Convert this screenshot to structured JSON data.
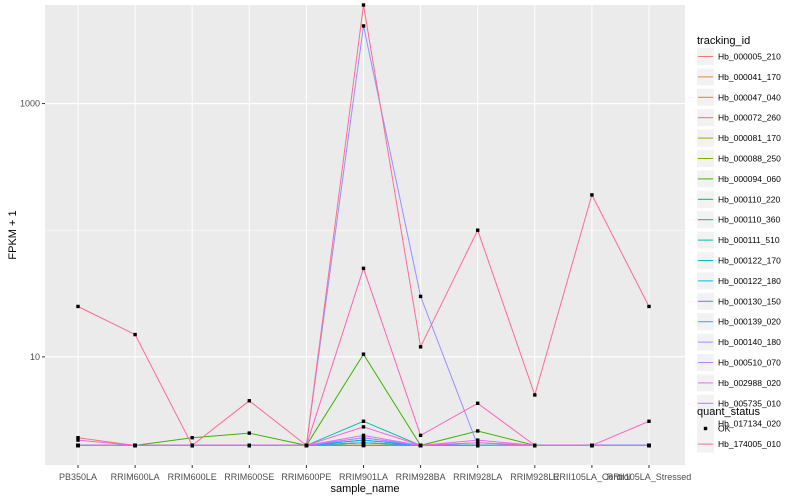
{
  "chart_data": {
    "type": "line",
    "title": "",
    "xlabel": "sample_name",
    "ylabel": "FPKM + 1",
    "y_scale": "log10",
    "ylim": [
      1.4,
      6000
    ],
    "y_ticks": [
      {
        "value": 10,
        "label": "10"
      },
      {
        "value": 1000,
        "label": "1000"
      }
    ],
    "grid": true,
    "panel_background": "#ebebeb",
    "categories": [
      "PB350LA",
      "RRIM600LA",
      "RRIM600LE",
      "RRIM600SE",
      "RRIM600PE",
      "RRIM901LA",
      "RRIM928BA",
      "RRIM928LA",
      "RRIM928LE",
      "RRII105LA_Control",
      "RRII105LA_Stressed"
    ],
    "legend": {
      "position": "right",
      "color_title": "tracking_id",
      "shape_title": "quant_status",
      "shape_entries": [
        "OK"
      ]
    },
    "series": [
      {
        "name": "Hb_000005_210",
        "color": "#F8766D",
        "values": [
          2.3,
          2,
          2,
          2,
          2,
          2,
          2,
          2,
          2,
          2,
          2
        ]
      },
      {
        "name": "Hb_000041_170",
        "color": "#F07F44",
        "values": [
          2,
          2,
          2,
          2,
          2,
          2,
          2,
          2,
          2,
          2,
          2
        ]
      },
      {
        "name": "Hb_000047_040",
        "color": "#E58700",
        "values": [
          2,
          2,
          2,
          2,
          2,
          2,
          2,
          2,
          2,
          2,
          2
        ]
      },
      {
        "name": "Hb_000072_260",
        "color": "#C99800",
        "values": [
          2,
          2,
          2,
          2,
          2,
          2,
          2,
          2,
          2,
          2,
          2
        ]
      },
      {
        "name": "Hb_000081_170",
        "color": "#A3A500",
        "values": [
          2,
          2,
          2,
          2,
          2,
          2,
          2,
          2,
          2,
          2,
          2
        ]
      },
      {
        "name": "Hb_000088_250",
        "color": "#7CAE00",
        "values": [
          2,
          2,
          2,
          2,
          2,
          2,
          2,
          2,
          2,
          2,
          2
        ]
      },
      {
        "name": "Hb_000094_060",
        "color": "#39B600",
        "values": [
          2,
          2,
          2.3,
          2.5,
          2,
          10.5,
          2,
          2.6,
          2,
          2,
          2
        ]
      },
      {
        "name": "Hb_000110_220",
        "color": "#00BB4E",
        "values": [
          2,
          2,
          2,
          2,
          2,
          2.2,
          2,
          2,
          2,
          2,
          2
        ]
      },
      {
        "name": "Hb_000110_360",
        "color": "#00BF7D",
        "values": [
          2,
          2,
          2,
          2,
          2,
          2.1,
          2,
          2,
          2,
          2,
          2
        ]
      },
      {
        "name": "Hb_000111_510",
        "color": "#00C1A3",
        "values": [
          2,
          2,
          2,
          2,
          2,
          3.1,
          2,
          2,
          2,
          2,
          2
        ]
      },
      {
        "name": "Hb_000122_170",
        "color": "#00BFC4",
        "values": [
          2,
          2,
          2,
          2,
          2,
          2.3,
          2,
          2,
          2,
          2,
          2
        ]
      },
      {
        "name": "Hb_000122_180",
        "color": "#00BAE0",
        "values": [
          2,
          2,
          2,
          2,
          2,
          2.1,
          2,
          2,
          2,
          2,
          2
        ]
      },
      {
        "name": "Hb_000130_150",
        "color": "#00B0F6",
        "values": [
          2,
          2,
          2,
          2,
          2,
          2.2,
          2,
          2,
          2,
          2,
          2
        ]
      },
      {
        "name": "Hb_000139_020",
        "color": "#35A2FF",
        "values": [
          2,
          2,
          2,
          2,
          2,
          2.1,
          2,
          2,
          2,
          2,
          2
        ]
      },
      {
        "name": "Hb_000140_180",
        "color": "#9590FF",
        "values": [
          2,
          2,
          2,
          2,
          2,
          4100,
          30,
          2,
          2,
          2,
          2
        ]
      },
      {
        "name": "Hb_000510_070",
        "color": "#C77CFF",
        "values": [
          2,
          2,
          2,
          2,
          2,
          2.3,
          2,
          2.1,
          2,
          2,
          2
        ]
      },
      {
        "name": "Hb_002988_020",
        "color": "#E76BF3",
        "values": [
          2,
          2,
          2,
          2,
          2,
          2.4,
          2,
          2.2,
          2,
          2,
          2
        ]
      },
      {
        "name": "Hb_005735_010",
        "color": "#FA62DB",
        "values": [
          2.2,
          2,
          2,
          2,
          2,
          2.8,
          2,
          2.1,
          2,
          2,
          2
        ]
      },
      {
        "name": "Hb_017134_020",
        "color": "#FF62BC",
        "values": [
          2,
          2,
          2,
          2,
          2,
          50,
          2.4,
          4.3,
          2,
          2,
          3.1
        ]
      },
      {
        "name": "Hb_174005_010",
        "color": "#FF6C91",
        "values": [
          25,
          15,
          2,
          4.5,
          2,
          6000,
          12,
          100,
          5,
          190,
          25
        ]
      }
    ]
  }
}
